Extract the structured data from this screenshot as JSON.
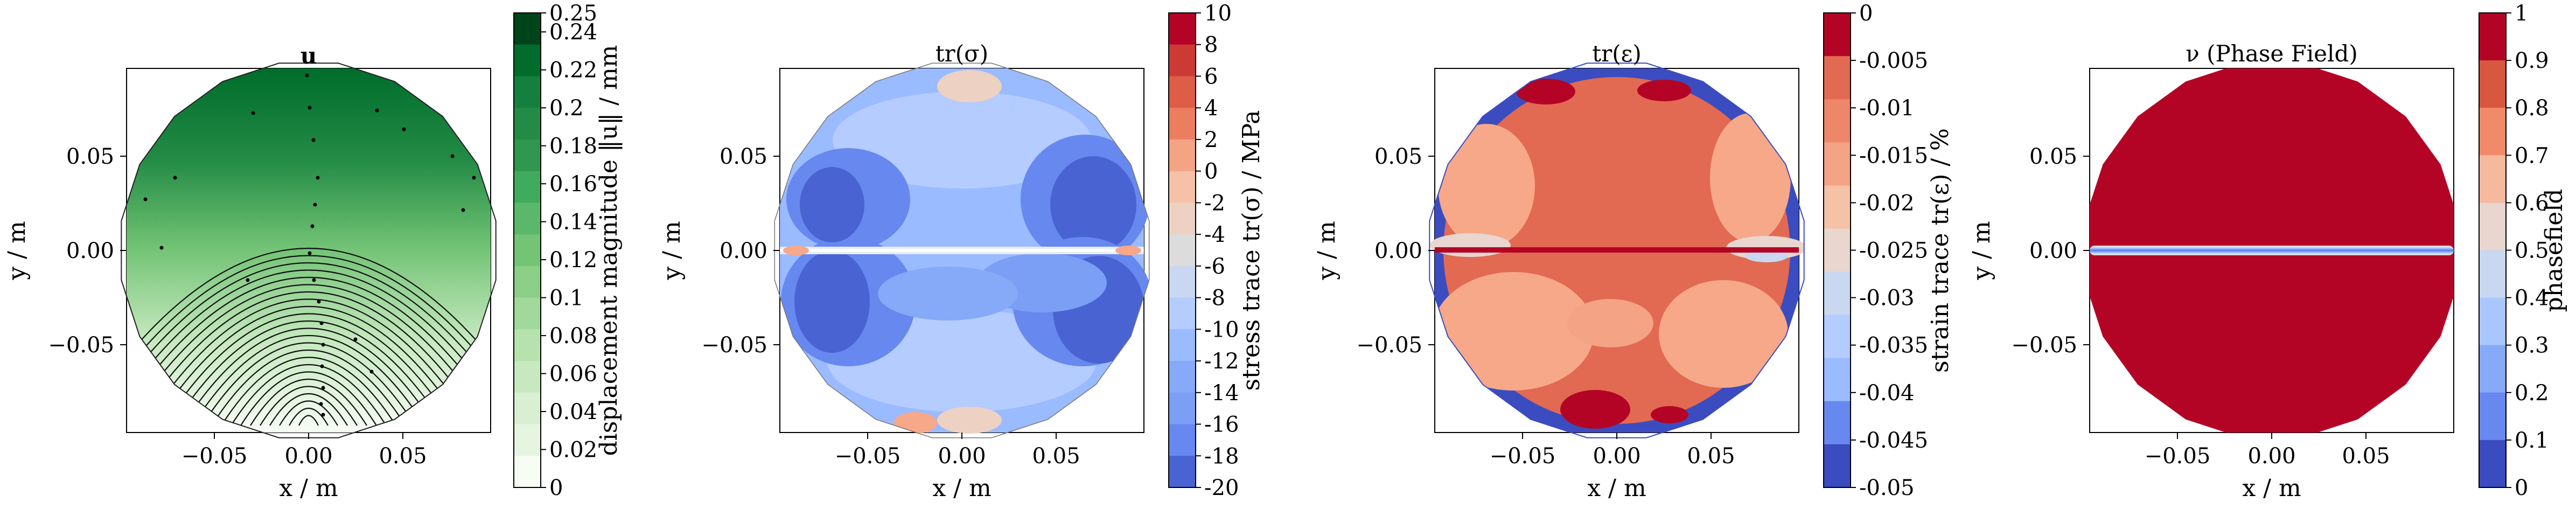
{
  "chart_data": [
    {
      "type": "heatmap",
      "title": "u",
      "xlabel": "x / m",
      "ylabel": "y / m",
      "xticks": [
        "−0.05",
        "0.00",
        "0.05"
      ],
      "xtick_values": [
        -0.05,
        0.0,
        0.05
      ],
      "yticks": [
        "0.05",
        "0.00",
        "−0.05"
      ],
      "ytick_values": [
        0.05,
        0.0,
        -0.05
      ],
      "xlim": [
        -0.097,
        0.097
      ],
      "ylim": [
        -0.097,
        0.097
      ],
      "colormap": "Greens",
      "colors": [
        "#f7fcf5",
        "#e5f5e0",
        "#c7e9c0",
        "#a1d99b",
        "#74c476",
        "#41ab5d",
        "#238b45",
        "#006d2c",
        "#00441b"
      ],
      "colorbar": {
        "label": "displacement magnitude ‖u‖ / mm",
        "ticks": [
          "0.25",
          "0.24",
          "0.22",
          "0.2",
          "0.18",
          "0.16",
          "0.14",
          "0.12",
          "0.1",
          "0.08",
          "0.06",
          "0.04",
          "0.02",
          "0"
        ],
        "tick_values": [
          0.25,
          0.24,
          0.22,
          0.2,
          0.18,
          0.16,
          0.14,
          0.12,
          0.1,
          0.08,
          0.06,
          0.04,
          0.02,
          0
        ],
        "range": [
          0,
          0.25
        ]
      },
      "field": "displacement magnitude grows from ~0 at the bottom of the disc to ~0.25 at the top; streamlines arch downward"
    },
    {
      "type": "heatmap",
      "title": "tr(σ)",
      "xlabel": "x / m",
      "ylabel": "y / m",
      "xticks": [
        "−0.05",
        "0.00",
        "0.05"
      ],
      "yticks": [
        "0.05",
        "0.00",
        "−0.05"
      ],
      "colormap": "coolwarm",
      "colors": [
        "#3b4cc0",
        "#6788ee",
        "#9abbff",
        "#c9d7f0",
        "#edd1c2",
        "#f7a889",
        "#e26952",
        "#b40426"
      ],
      "colorbar": {
        "label": "stress trace tr(σ) / MPa",
        "ticks": [
          "10",
          "8",
          "6",
          "4",
          "2",
          "0",
          "-2",
          "-4",
          "-6",
          "-8",
          "-10",
          "-12",
          "-14",
          "-16",
          "-18",
          "-20"
        ],
        "tick_values": [
          10,
          8,
          6,
          4,
          2,
          0,
          -2,
          -4,
          -6,
          -8,
          -10,
          -12,
          -14,
          -16,
          -18,
          -20
        ],
        "range": [
          -20,
          10
        ]
      },
      "field": "mostly compressive (−10 to −20 MPa) with strongest compression at left and right lobes; near-zero along the horizontal crack line"
    },
    {
      "type": "heatmap",
      "title": "tr(ε)",
      "xlabel": "x / m",
      "ylabel": "y / m",
      "xticks": [
        "−0.05",
        "0.00",
        "0.05"
      ],
      "yticks": [
        "0.05",
        "0.00",
        "−0.05"
      ],
      "colormap": "coolwarm",
      "colors": [
        "#3b4cc0",
        "#b40426",
        "#e26952",
        "#f7a889"
      ],
      "colorbar": {
        "label": "strain trace tr(ε) / %",
        "ticks": [
          "0",
          "-0.005",
          "-0.01",
          "-0.015",
          "-0.02",
          "-0.025",
          "-0.03",
          "-0.035",
          "-0.04",
          "-0.045",
          "-0.05"
        ],
        "tick_values": [
          0,
          -0.005,
          -0.01,
          -0.015,
          -0.02,
          -0.025,
          -0.03,
          -0.035,
          -0.04,
          -0.045,
          -0.05
        ],
        "range": [
          -0.05,
          0
        ]
      },
      "field": "interior mostly −0.01 to −0.02 %, a blue rim at −0.05 %, red spots near top and bottom, red line along the crack"
    },
    {
      "type": "heatmap",
      "title": "ν (Phase Field)",
      "xlabel": "x / m",
      "ylabel": "y / m",
      "xticks": [
        "−0.05",
        "0.00",
        "0.05"
      ],
      "yticks": [
        "0.05",
        "0.00",
        "−0.05"
      ],
      "colormap": "coolwarm",
      "colors": [
        "#b40426",
        "#3b4cc0",
        "#dddddd"
      ],
      "colorbar": {
        "label": "phasefield",
        "ticks": [
          "1",
          "0.9",
          "0.8",
          "0.7",
          "0.6",
          "0.5",
          "0.4",
          "0.3",
          "0.2",
          "0.1",
          "0"
        ],
        "tick_values": [
          1,
          0.9,
          0.8,
          0.7,
          0.6,
          0.5,
          0.4,
          0.3,
          0.2,
          0.1,
          0
        ],
        "range": [
          0,
          1
        ]
      },
      "field": "phase field equals 1 everywhere except a thin horizontal crack band at y = 0 where it drops to 0"
    }
  ]
}
